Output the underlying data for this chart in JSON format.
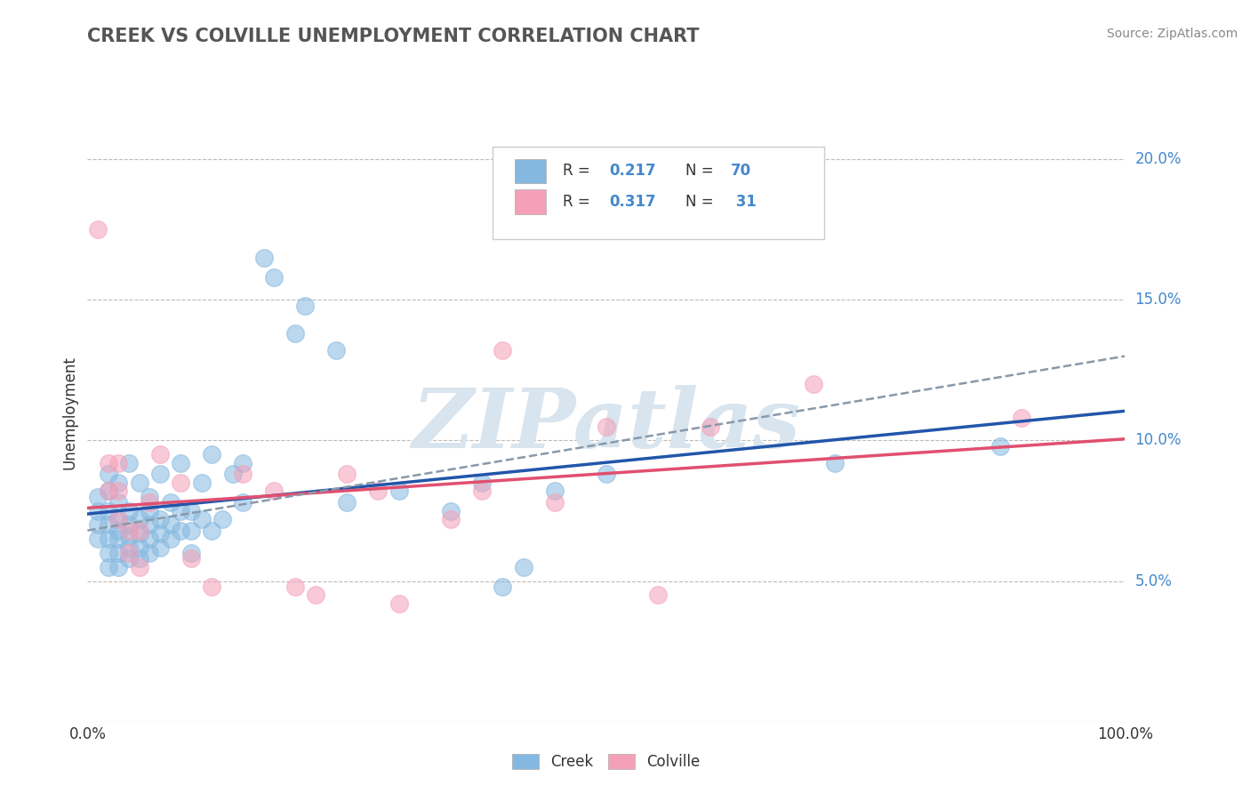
{
  "title": "CREEK VS COLVILLE UNEMPLOYMENT CORRELATION CHART",
  "source_text": "Source: ZipAtlas.com",
  "ylabel": "Unemployment",
  "xlim": [
    0.0,
    1.0
  ],
  "ylim": [
    0.0,
    0.22
  ],
  "y_tick_values": [
    0.05,
    0.1,
    0.15,
    0.2
  ],
  "y_tick_labels": [
    "5.0%",
    "10.0%",
    "15.0%",
    "20.0%"
  ],
  "creek_color": "#85b8e0",
  "colville_color": "#f4a0b8",
  "creek_line_color": "#2255aa",
  "colville_line_color": "#e05070",
  "creek_R": 0.217,
  "creek_N": 70,
  "colville_R": 0.317,
  "colville_N": 31,
  "background_color": "#ffffff",
  "grid_color": "#bbbbbb",
  "watermark_color": "#d8e4ee",
  "tick_color": "#4488cc",
  "creek_scatter_x": [
    0.01,
    0.01,
    0.01,
    0.01,
    0.02,
    0.02,
    0.02,
    0.02,
    0.02,
    0.02,
    0.02,
    0.03,
    0.03,
    0.03,
    0.03,
    0.03,
    0.03,
    0.03,
    0.04,
    0.04,
    0.04,
    0.04,
    0.04,
    0.04,
    0.05,
    0.05,
    0.05,
    0.05,
    0.05,
    0.06,
    0.06,
    0.06,
    0.06,
    0.06,
    0.07,
    0.07,
    0.07,
    0.07,
    0.08,
    0.08,
    0.08,
    0.09,
    0.09,
    0.09,
    0.1,
    0.1,
    0.1,
    0.11,
    0.11,
    0.12,
    0.12,
    0.13,
    0.14,
    0.15,
    0.15,
    0.17,
    0.18,
    0.2,
    0.21,
    0.24,
    0.25,
    0.3,
    0.35,
    0.38,
    0.4,
    0.42,
    0.45,
    0.5,
    0.72,
    0.88
  ],
  "creek_scatter_y": [
    0.065,
    0.07,
    0.075,
    0.08,
    0.055,
    0.06,
    0.065,
    0.07,
    0.075,
    0.082,
    0.088,
    0.055,
    0.06,
    0.065,
    0.068,
    0.072,
    0.078,
    0.085,
    0.058,
    0.062,
    0.066,
    0.07,
    0.075,
    0.092,
    0.058,
    0.062,
    0.067,
    0.072,
    0.085,
    0.06,
    0.065,
    0.07,
    0.075,
    0.08,
    0.062,
    0.067,
    0.072,
    0.088,
    0.065,
    0.07,
    0.078,
    0.068,
    0.075,
    0.092,
    0.06,
    0.068,
    0.075,
    0.072,
    0.085,
    0.068,
    0.095,
    0.072,
    0.088,
    0.078,
    0.092,
    0.165,
    0.158,
    0.138,
    0.148,
    0.132,
    0.078,
    0.082,
    0.075,
    0.085,
    0.048,
    0.055,
    0.082,
    0.088,
    0.092,
    0.098
  ],
  "colville_scatter_x": [
    0.01,
    0.02,
    0.02,
    0.03,
    0.03,
    0.03,
    0.04,
    0.04,
    0.05,
    0.05,
    0.06,
    0.07,
    0.09,
    0.1,
    0.12,
    0.15,
    0.18,
    0.2,
    0.22,
    0.25,
    0.28,
    0.3,
    0.35,
    0.38,
    0.4,
    0.45,
    0.5,
    0.55,
    0.6,
    0.7,
    0.9
  ],
  "colville_scatter_y": [
    0.175,
    0.092,
    0.082,
    0.072,
    0.082,
    0.092,
    0.06,
    0.068,
    0.055,
    0.068,
    0.078,
    0.095,
    0.085,
    0.058,
    0.048,
    0.088,
    0.082,
    0.048,
    0.045,
    0.088,
    0.082,
    0.042,
    0.072,
    0.082,
    0.132,
    0.078,
    0.105,
    0.045,
    0.105,
    0.12,
    0.108
  ],
  "dashed_line_slope": 0.062,
  "dashed_line_intercept": 0.068
}
